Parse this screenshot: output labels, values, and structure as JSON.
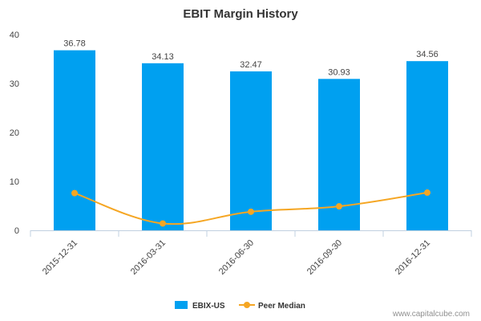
{
  "chart_data": {
    "type": "bar",
    "title": "EBIT Margin History",
    "categories": [
      "2015-12-31",
      "2016-03-31",
      "2016-06-30",
      "2016-09-30",
      "2016-12-31"
    ],
    "series": [
      {
        "name": "EBIX-US",
        "type": "bar",
        "color": "#00a0f0",
        "values": [
          36.78,
          34.13,
          32.47,
          30.93,
          34.56
        ],
        "labels": [
          "36.78",
          "34.13",
          "32.47",
          "30.93",
          "34.56"
        ]
      },
      {
        "name": "Peer Median",
        "type": "line",
        "color": "#f5a623",
        "values": [
          7.6,
          1.4,
          3.8,
          4.9,
          7.7
        ]
      }
    ],
    "ylim": [
      0,
      40
    ],
    "yticks": [
      "0",
      "10",
      "20",
      "30",
      "40"
    ],
    "grid": false,
    "legend": "bottom-center"
  },
  "credit": "www.capitalcube.com"
}
